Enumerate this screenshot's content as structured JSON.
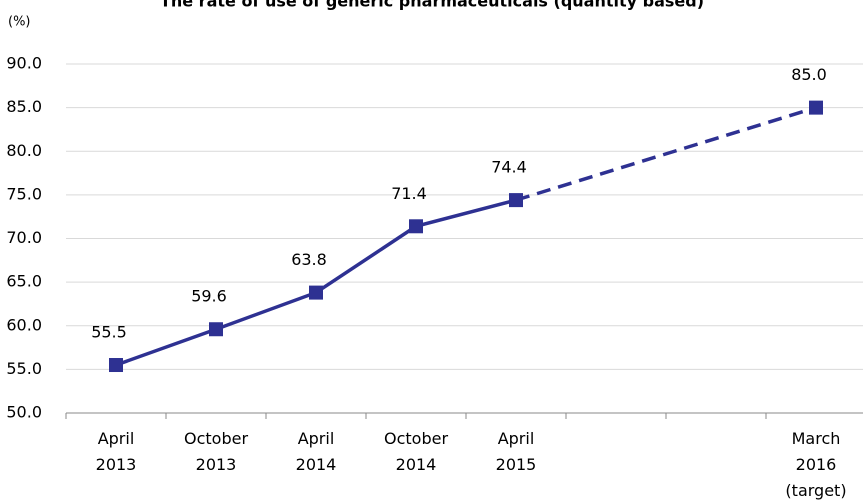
{
  "chart_data": {
    "type": "line",
    "title": "The rate of use of generic pharmaceuticals (quantity based)",
    "y_unit": "(%)",
    "categories": [
      "April 2013",
      "October 2013",
      "April 2014",
      "October 2014",
      "April 2015",
      null,
      null,
      "March 2016 (target)"
    ],
    "series": [
      {
        "color": "#2e3192",
        "values": [
          55.5,
          59.6,
          63.8,
          71.4,
          74.4,
          null,
          null,
          85.0
        ],
        "value_labels": [
          "55.5",
          "59.6",
          "63.8",
          "71.4",
          "74.4",
          null,
          null,
          "85.0"
        ]
      }
    ],
    "connect_gaps": true,
    "dashed_from_index": 4,
    "ylim": [
      50,
      90
    ],
    "yticks": [
      {
        "value": 50,
        "label": "50.0"
      },
      {
        "value": 55,
        "label": "55.0"
      },
      {
        "value": 60,
        "label": "60.0"
      },
      {
        "value": 65,
        "label": "65.0"
      },
      {
        "value": 70,
        "label": "70.0"
      },
      {
        "value": 75,
        "label": "75.0"
      },
      {
        "value": 80,
        "label": "80.0"
      },
      {
        "value": 85,
        "label": "85.0"
      },
      {
        "value": 90,
        "label": "90.0"
      }
    ],
    "grid": true
  }
}
